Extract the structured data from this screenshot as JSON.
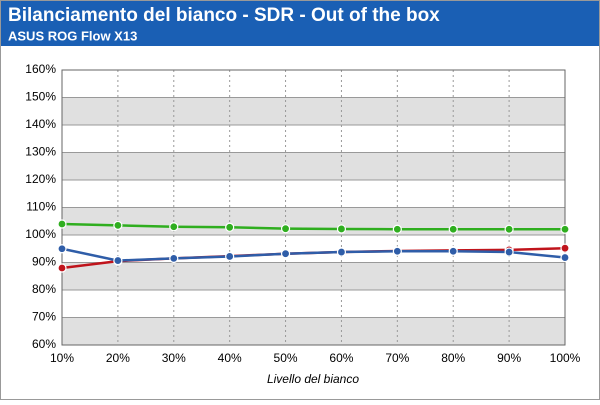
{
  "chart_data": {
    "type": "line",
    "title": "Bilanciamento del bianco - SDR - Out of the box",
    "subtitle": "ASUS ROG Flow X13",
    "x_label": "Livello del bianco",
    "categories": [
      "10%",
      "20%",
      "30%",
      "40%",
      "50%",
      "60%",
      "70%",
      "80%",
      "90%",
      "100%"
    ],
    "series": [
      {
        "color": "#2fae1f",
        "values": [
          104,
          103.5,
          103,
          102.8,
          102.3,
          102.2,
          102.1,
          102.1,
          102.1,
          102.1
        ]
      },
      {
        "color": "#c0141c",
        "values": [
          88,
          90.5,
          91.5,
          92.3,
          93.2,
          93.8,
          94.2,
          94.4,
          94.6,
          95.2
        ]
      },
      {
        "color": "#2f5da8",
        "values": [
          95,
          90.7,
          91.5,
          92.2,
          93.2,
          93.8,
          94.1,
          94.1,
          93.8,
          91.8
        ]
      }
    ],
    "ylim": [
      60,
      160
    ],
    "yticks": [
      {
        "value": 60,
        "label": "60%"
      },
      {
        "value": 70,
        "label": "70%"
      },
      {
        "value": 80,
        "label": "80%"
      },
      {
        "value": 90,
        "label": "90%"
      },
      {
        "value": 100,
        "label": "100%"
      },
      {
        "value": 110,
        "label": "110%"
      },
      {
        "value": 120,
        "label": "120%"
      },
      {
        "value": 130,
        "label": "130%"
      },
      {
        "value": 140,
        "label": "140%"
      },
      {
        "value": 150,
        "label": "150%"
      },
      {
        "value": 160,
        "label": "160%"
      }
    ],
    "grid": true
  }
}
